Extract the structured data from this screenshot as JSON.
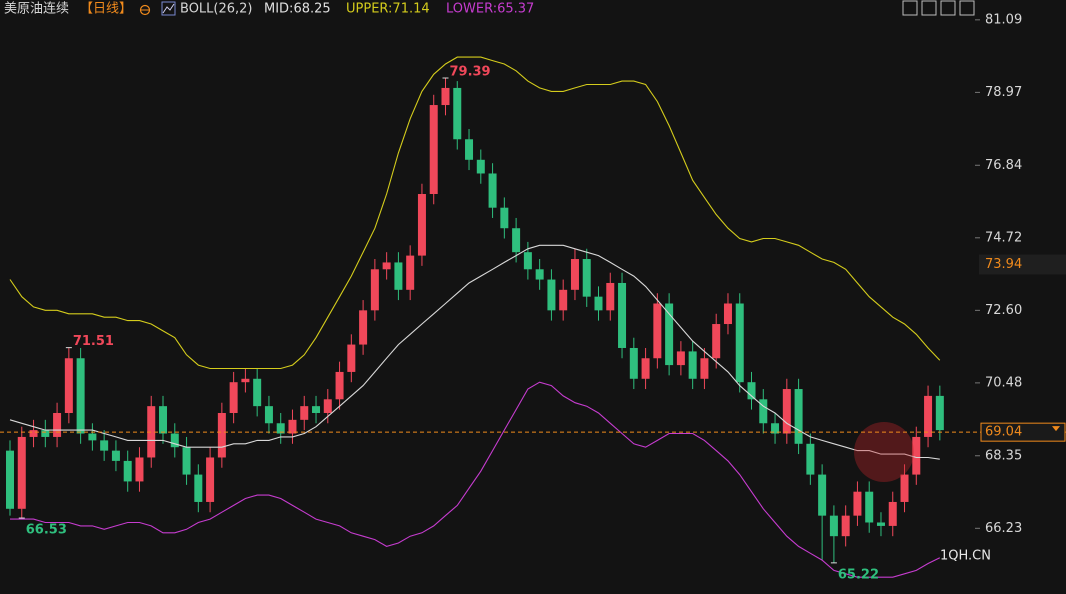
{
  "chart_data": {
    "type": "candlestick",
    "title": "美原油连续",
    "period": "【日线】",
    "indicator": "BOLL(26,2)",
    "indicator_values": [
      "MID:68.25",
      "UPPER:71.14",
      "LOWER:65.37"
    ],
    "watermark": "1QH.CN",
    "up_color": "#f0485a",
    "down_color": "#2fbf7e",
    "open": [
      68.5,
      66.8,
      68.9,
      69.1,
      68.9,
      69.6,
      71.2,
      69.0,
      68.8,
      68.5,
      68.2,
      67.6,
      68.3,
      69.8,
      69.0,
      68.6,
      67.8,
      67.0,
      68.3,
      69.6,
      70.5,
      70.6,
      69.8,
      69.3,
      69.0,
      69.4,
      69.8,
      69.6,
      70.0,
      70.8,
      71.6,
      72.6,
      73.8,
      74.0,
      73.2,
      74.2,
      76.0,
      78.6,
      79.1,
      77.6,
      77.0,
      76.6,
      75.6,
      75.0,
      74.3,
      73.8,
      73.5,
      72.6,
      73.2,
      74.1,
      73.0,
      72.6,
      73.4,
      71.5,
      70.6,
      71.2,
      72.8,
      71.0,
      71.4,
      70.6,
      71.2,
      72.2,
      72.8,
      70.5,
      70.0,
      69.3,
      69.0,
      70.3,
      68.7,
      67.8,
      66.6,
      66.0,
      66.6,
      67.3,
      66.4,
      66.3,
      67.0,
      67.8,
      68.9,
      70.1
    ],
    "high": [
      68.8,
      69.2,
      69.4,
      69.4,
      69.9,
      71.51,
      71.5,
      69.3,
      69.1,
      68.8,
      68.5,
      68.6,
      70.1,
      70.1,
      69.3,
      68.9,
      68.1,
      68.6,
      69.9,
      70.8,
      70.9,
      70.9,
      70.1,
      69.6,
      69.7,
      70.1,
      70.1,
      70.3,
      71.1,
      71.9,
      72.9,
      74.1,
      74.3,
      74.3,
      74.5,
      76.3,
      78.9,
      79.39,
      79.3,
      77.9,
      77.3,
      76.9,
      75.9,
      75.3,
      74.6,
      74.1,
      73.8,
      73.5,
      74.4,
      74.4,
      73.3,
      73.7,
      73.7,
      71.8,
      71.5,
      73.1,
      73.1,
      71.7,
      71.7,
      71.5,
      72.5,
      73.1,
      73.1,
      70.8,
      70.3,
      69.6,
      70.6,
      70.6,
      69.0,
      68.1,
      66.9,
      66.9,
      67.6,
      67.6,
      66.7,
      67.3,
      68.1,
      69.2,
      70.4,
      70.4
    ],
    "low": [
      66.6,
      66.53,
      68.6,
      68.6,
      68.6,
      69.3,
      68.7,
      68.5,
      68.2,
      67.9,
      67.3,
      67.3,
      68.0,
      68.7,
      68.3,
      67.5,
      66.7,
      66.7,
      68.0,
      69.3,
      70.2,
      69.5,
      69.0,
      68.7,
      68.7,
      69.1,
      69.3,
      69.3,
      69.7,
      70.5,
      71.3,
      72.3,
      73.5,
      72.9,
      72.9,
      73.9,
      75.7,
      78.3,
      77.3,
      76.7,
      76.3,
      75.3,
      74.7,
      74.0,
      73.5,
      73.2,
      72.3,
      72.3,
      72.9,
      72.7,
      72.3,
      72.3,
      71.2,
      70.3,
      70.3,
      70.9,
      70.7,
      70.7,
      70.3,
      70.3,
      70.9,
      71.9,
      70.2,
      69.7,
      69.0,
      68.7,
      68.7,
      68.4,
      67.5,
      65.3,
      65.22,
      65.7,
      66.3,
      66.1,
      66.0,
      66.0,
      66.7,
      67.5,
      68.6,
      68.8
    ],
    "close": [
      66.8,
      68.9,
      69.1,
      68.9,
      69.6,
      71.2,
      69.0,
      68.8,
      68.5,
      68.2,
      67.6,
      68.3,
      69.8,
      69.0,
      68.6,
      67.8,
      67.0,
      68.3,
      69.6,
      70.5,
      70.6,
      69.8,
      69.3,
      69.0,
      69.4,
      69.8,
      69.6,
      70.0,
      70.8,
      71.6,
      72.6,
      73.8,
      74.0,
      73.2,
      74.2,
      76.0,
      78.6,
      79.1,
      77.6,
      77.0,
      76.6,
      75.6,
      75.0,
      74.3,
      73.8,
      73.5,
      72.6,
      73.2,
      74.1,
      73.0,
      72.6,
      73.4,
      71.5,
      70.6,
      71.2,
      72.8,
      71.0,
      71.4,
      70.6,
      71.2,
      72.2,
      72.8,
      70.5,
      70.0,
      69.3,
      69.0,
      70.3,
      68.7,
      67.8,
      66.6,
      66.0,
      66.6,
      67.3,
      66.4,
      66.3,
      67.0,
      67.8,
      68.9,
      70.1,
      69.1
    ],
    "high_labels": [
      null,
      null,
      null,
      null,
      null,
      "71.51",
      null,
      null,
      null,
      null,
      null,
      null,
      null,
      null,
      null,
      null,
      null,
      null,
      null,
      null,
      null,
      null,
      null,
      null,
      null,
      null,
      null,
      null,
      null,
      null,
      null,
      null,
      null,
      null,
      null,
      null,
      null,
      "79.39",
      null,
      null,
      null,
      null,
      null,
      null,
      null,
      null,
      null,
      null,
      null,
      null,
      null,
      null,
      null,
      null,
      null,
      null,
      null,
      null,
      null,
      null,
      null,
      null,
      null,
      null,
      null,
      null,
      null,
      null,
      null,
      null,
      null,
      null,
      null,
      null,
      null,
      null,
      null,
      null,
      null,
      null
    ],
    "low_labels": [
      null,
      "66.53",
      null,
      null,
      null,
      null,
      null,
      null,
      null,
      null,
      null,
      null,
      null,
      null,
      null,
      null,
      null,
      null,
      null,
      null,
      null,
      null,
      null,
      null,
      null,
      null,
      null,
      null,
      null,
      null,
      null,
      null,
      null,
      null,
      null,
      null,
      null,
      null,
      null,
      null,
      null,
      null,
      null,
      null,
      null,
      null,
      null,
      null,
      null,
      null,
      null,
      null,
      null,
      null,
      null,
      null,
      null,
      null,
      null,
      null,
      null,
      null,
      null,
      null,
      null,
      null,
      null,
      null,
      null,
      null,
      "65.22",
      null,
      null,
      null,
      null,
      null,
      null,
      null,
      null,
      null
    ],
    "series": [
      {
        "name": "UPPER",
        "color": "#d4cc1c",
        "values": [
          73.5,
          73.0,
          72.7,
          72.6,
          72.6,
          72.5,
          72.5,
          72.5,
          72.4,
          72.4,
          72.3,
          72.3,
          72.2,
          72.0,
          71.8,
          71.3,
          71.0,
          70.9,
          70.9,
          70.9,
          70.9,
          70.9,
          70.9,
          70.9,
          71.0,
          71.3,
          71.8,
          72.4,
          73.0,
          73.6,
          74.3,
          75.0,
          76.0,
          77.2,
          78.2,
          79.0,
          79.5,
          79.8,
          80.0,
          80.0,
          80.0,
          79.9,
          79.8,
          79.6,
          79.3,
          79.1,
          79.0,
          79.0,
          79.1,
          79.2,
          79.2,
          79.2,
          79.3,
          79.3,
          79.2,
          78.7,
          78.0,
          77.2,
          76.4,
          75.9,
          75.4,
          75.0,
          74.7,
          74.6,
          74.7,
          74.7,
          74.6,
          74.5,
          74.3,
          74.1,
          74.0,
          73.8,
          73.4,
          73.0,
          72.7,
          72.4,
          72.2,
          71.9,
          71.5,
          71.14
        ]
      },
      {
        "name": "MID",
        "color": "#d8d8d8",
        "values": [
          69.4,
          69.3,
          69.2,
          69.1,
          69.1,
          69.1,
          69.1,
          69.1,
          69.0,
          68.9,
          68.8,
          68.8,
          68.8,
          68.8,
          68.7,
          68.6,
          68.6,
          68.6,
          68.6,
          68.7,
          68.7,
          68.8,
          68.8,
          68.9,
          68.9,
          69.0,
          69.2,
          69.5,
          69.8,
          70.1,
          70.4,
          70.8,
          71.2,
          71.6,
          71.9,
          72.2,
          72.5,
          72.8,
          73.1,
          73.4,
          73.6,
          73.8,
          74.0,
          74.2,
          74.4,
          74.5,
          74.5,
          74.5,
          74.4,
          74.3,
          74.2,
          74.0,
          73.8,
          73.6,
          73.3,
          72.9,
          72.5,
          72.1,
          71.7,
          71.4,
          71.1,
          70.8,
          70.4,
          70.1,
          69.8,
          69.6,
          69.3,
          69.1,
          68.9,
          68.8,
          68.7,
          68.6,
          68.5,
          68.5,
          68.4,
          68.4,
          68.4,
          68.3,
          68.3,
          68.25
        ]
      },
      {
        "name": "LOWER",
        "color": "#c63ccf",
        "values": [
          66.5,
          66.5,
          66.5,
          66.4,
          66.4,
          66.4,
          66.3,
          66.3,
          66.2,
          66.3,
          66.4,
          66.4,
          66.3,
          66.1,
          66.1,
          66.2,
          66.4,
          66.5,
          66.7,
          66.9,
          67.1,
          67.2,
          67.2,
          67.1,
          66.9,
          66.7,
          66.5,
          66.4,
          66.3,
          66.1,
          66.0,
          65.9,
          65.7,
          65.8,
          66.0,
          66.1,
          66.3,
          66.6,
          66.9,
          67.4,
          67.9,
          68.5,
          69.1,
          69.7,
          70.3,
          70.5,
          70.4,
          70.1,
          69.9,
          69.8,
          69.6,
          69.3,
          69.0,
          68.7,
          68.6,
          68.8,
          69.0,
          69.0,
          69.0,
          68.8,
          68.5,
          68.2,
          67.8,
          67.3,
          66.8,
          66.4,
          66.0,
          65.7,
          65.5,
          65.3,
          65.0,
          64.9,
          64.8,
          64.8,
          64.8,
          64.8,
          64.9,
          65.0,
          65.2,
          65.37
        ]
      }
    ],
    "ylim": [
      64.31,
      81.67
    ],
    "yticks": [
      81.09,
      78.97,
      76.84,
      74.72,
      {
        "value": 72.6,
        "label": "72.60"
      },
      70.48,
      68.35,
      66.23
    ],
    "marker_price": 73.94,
    "last_price": 69.04,
    "grid": false
  }
}
